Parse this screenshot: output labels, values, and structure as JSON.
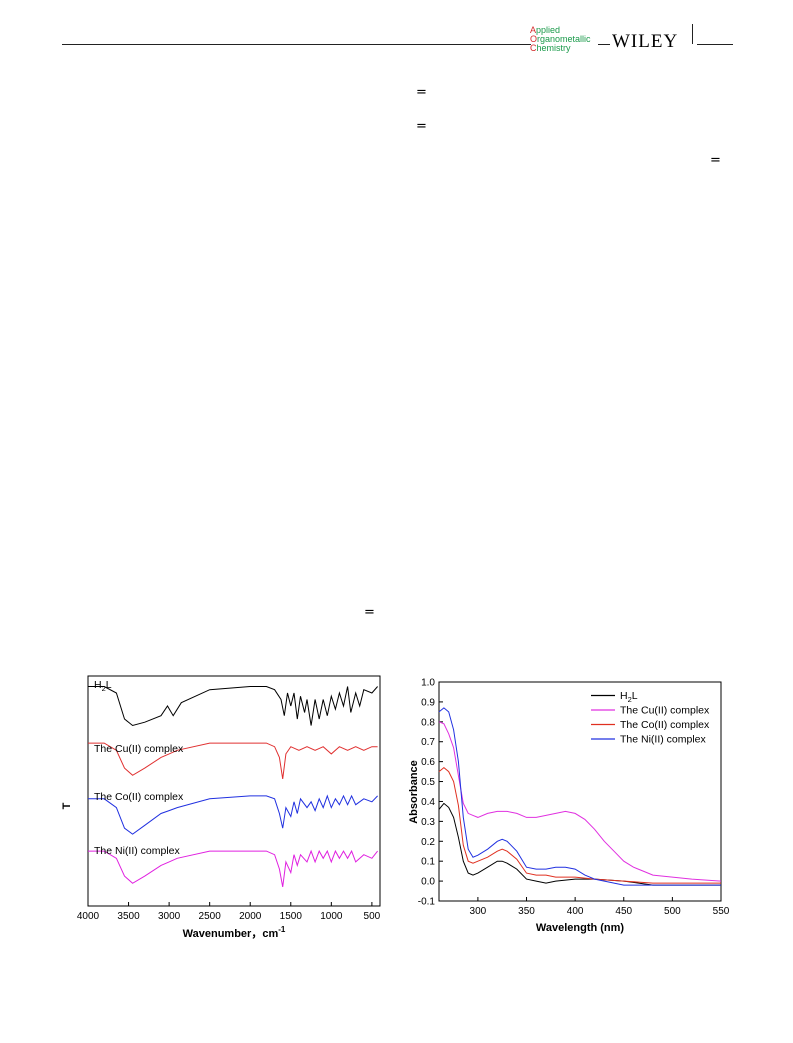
{
  "header": {
    "journal_line1_initial": "A",
    "journal_line1_rest": "pplied",
    "journal_line2_initial": "O",
    "journal_line2_rest": "rganometallic",
    "journal_line3_initial": "C",
    "journal_line3_rest": "hemistry",
    "publisher": "WILEY"
  },
  "equals_symbol": "=",
  "chart_data": [
    {
      "type": "line",
      "title": "",
      "xlabel": "Wavenumber，cm",
      "xlabel_superscript": "-1",
      "ylabel": "T",
      "xlim": [
        4000,
        400
      ],
      "x_ticks": [
        "4000",
        "3500",
        "3000",
        "2500",
        "2000",
        "1500",
        "1000",
        "500"
      ],
      "series": [
        {
          "name": "H2L",
          "label_main": "H",
          "label_sub": "2",
          "label_tail": "L",
          "color": "#000000",
          "points": [
            [
              4000,
              0.82
            ],
            [
              3800,
              0.82
            ],
            [
              3650,
              0.8
            ],
            [
              3550,
              0.72
            ],
            [
              3450,
              0.7
            ],
            [
              3300,
              0.71
            ],
            [
              3100,
              0.73
            ],
            [
              3020,
              0.76
            ],
            [
              2950,
              0.73
            ],
            [
              2850,
              0.77
            ],
            [
              2500,
              0.81
            ],
            [
              2000,
              0.82
            ],
            [
              1800,
              0.82
            ],
            [
              1700,
              0.81
            ],
            [
              1620,
              0.78
            ],
            [
              1580,
              0.73
            ],
            [
              1540,
              0.8
            ],
            [
              1500,
              0.76
            ],
            [
              1460,
              0.8
            ],
            [
              1420,
              0.72
            ],
            [
              1380,
              0.79
            ],
            [
              1330,
              0.74
            ],
            [
              1300,
              0.78
            ],
            [
              1250,
              0.7
            ],
            [
              1200,
              0.78
            ],
            [
              1150,
              0.72
            ],
            [
              1100,
              0.78
            ],
            [
              1050,
              0.73
            ],
            [
              1000,
              0.79
            ],
            [
              950,
              0.75
            ],
            [
              900,
              0.8
            ],
            [
              850,
              0.76
            ],
            [
              800,
              0.82
            ],
            [
              760,
              0.74
            ],
            [
              700,
              0.8
            ],
            [
              650,
              0.76
            ],
            [
              600,
              0.81
            ],
            [
              500,
              0.8
            ],
            [
              430,
              0.82
            ]
          ]
        },
        {
          "name": "The Cu(II) complex",
          "color": "#e03030",
          "points": [
            [
              4000,
              0.59
            ],
            [
              3800,
              0.59
            ],
            [
              3650,
              0.57
            ],
            [
              3550,
              0.52
            ],
            [
              3450,
              0.5
            ],
            [
              3300,
              0.52
            ],
            [
              3100,
              0.55
            ],
            [
              3000,
              0.56
            ],
            [
              2900,
              0.57
            ],
            [
              2500,
              0.59
            ],
            [
              2000,
              0.59
            ],
            [
              1800,
              0.59
            ],
            [
              1700,
              0.58
            ],
            [
              1640,
              0.55
            ],
            [
              1600,
              0.49
            ],
            [
              1560,
              0.56
            ],
            [
              1500,
              0.58
            ],
            [
              1400,
              0.57
            ],
            [
              1300,
              0.58
            ],
            [
              1200,
              0.57
            ],
            [
              1100,
              0.58
            ],
            [
              1000,
              0.56
            ],
            [
              900,
              0.58
            ],
            [
              800,
              0.57
            ],
            [
              700,
              0.58
            ],
            [
              600,
              0.57
            ],
            [
              500,
              0.58
            ],
            [
              430,
              0.58
            ]
          ]
        },
        {
          "name": "The Co(II) complex",
          "color": "#2030e0",
          "points": [
            [
              4000,
              0.41
            ],
            [
              3800,
              0.41
            ],
            [
              3650,
              0.38
            ],
            [
              3550,
              0.31
            ],
            [
              3450,
              0.29
            ],
            [
              3300,
              0.32
            ],
            [
              3100,
              0.36
            ],
            [
              3000,
              0.37
            ],
            [
              2900,
              0.38
            ],
            [
              2500,
              0.41
            ],
            [
              2000,
              0.42
            ],
            [
              1800,
              0.42
            ],
            [
              1700,
              0.41
            ],
            [
              1640,
              0.36
            ],
            [
              1600,
              0.31
            ],
            [
              1560,
              0.38
            ],
            [
              1500,
              0.35
            ],
            [
              1460,
              0.4
            ],
            [
              1420,
              0.36
            ],
            [
              1380,
              0.41
            ],
            [
              1300,
              0.38
            ],
            [
              1250,
              0.4
            ],
            [
              1200,
              0.37
            ],
            [
              1150,
              0.41
            ],
            [
              1100,
              0.38
            ],
            [
              1050,
              0.42
            ],
            [
              1000,
              0.38
            ],
            [
              950,
              0.41
            ],
            [
              900,
              0.39
            ],
            [
              850,
              0.42
            ],
            [
              800,
              0.39
            ],
            [
              750,
              0.42
            ],
            [
              700,
              0.39
            ],
            [
              600,
              0.41
            ],
            [
              500,
              0.4
            ],
            [
              430,
              0.42
            ]
          ]
        },
        {
          "name": "The Ni(II) complex",
          "color": "#e020e0",
          "points": [
            [
              4000,
              0.19
            ],
            [
              3800,
              0.19
            ],
            [
              3650,
              0.17
            ],
            [
              3550,
              0.12
            ],
            [
              3450,
              0.1
            ],
            [
              3300,
              0.12
            ],
            [
              3100,
              0.15
            ],
            [
              3000,
              0.16
            ],
            [
              2900,
              0.17
            ],
            [
              2500,
              0.19
            ],
            [
              2000,
              0.19
            ],
            [
              1800,
              0.19
            ],
            [
              1700,
              0.18
            ],
            [
              1640,
              0.14
            ],
            [
              1600,
              0.09
            ],
            [
              1560,
              0.16
            ],
            [
              1500,
              0.13
            ],
            [
              1460,
              0.18
            ],
            [
              1420,
              0.15
            ],
            [
              1380,
              0.18
            ],
            [
              1300,
              0.16
            ],
            [
              1250,
              0.19
            ],
            [
              1200,
              0.16
            ],
            [
              1150,
              0.19
            ],
            [
              1100,
              0.17
            ],
            [
              1050,
              0.19
            ],
            [
              1000,
              0.16
            ],
            [
              950,
              0.19
            ],
            [
              900,
              0.17
            ],
            [
              850,
              0.19
            ],
            [
              800,
              0.17
            ],
            [
              750,
              0.19
            ],
            [
              700,
              0.16
            ],
            [
              600,
              0.18
            ],
            [
              500,
              0.17
            ],
            [
              430,
              0.19
            ]
          ]
        }
      ]
    },
    {
      "type": "line",
      "title": "",
      "xlabel": "Wavelength (nm)",
      "ylabel": "Absorbance",
      "xlim": [
        260,
        550
      ],
      "ylim": [
        -0.1,
        1.0
      ],
      "x_ticks": [
        "300",
        "350",
        "400",
        "450",
        "500",
        "550"
      ],
      "y_ticks": [
        "-0.1",
        "0.0",
        "0.1",
        "0.2",
        "0.3",
        "0.4",
        "0.5",
        "0.6",
        "0.7",
        "0.8",
        "0.9",
        "1.0"
      ],
      "legend_position": "top-right",
      "series": [
        {
          "name": "H2L",
          "label_main": "H",
          "label_sub": "2",
          "label_tail": "L",
          "color": "#000000",
          "points": [
            [
              260,
              0.36
            ],
            [
              265,
              0.39
            ],
            [
              270,
              0.37
            ],
            [
              275,
              0.32
            ],
            [
              280,
              0.22
            ],
            [
              285,
              0.1
            ],
            [
              290,
              0.04
            ],
            [
              295,
              0.03
            ],
            [
              300,
              0.04
            ],
            [
              310,
              0.07
            ],
            [
              320,
              0.1
            ],
            [
              325,
              0.1
            ],
            [
              330,
              0.09
            ],
            [
              340,
              0.06
            ],
            [
              350,
              0.01
            ],
            [
              360,
              0.0
            ],
            [
              370,
              -0.01
            ],
            [
              380,
              0.0
            ],
            [
              400,
              0.01
            ],
            [
              420,
              0.01
            ],
            [
              450,
              0.0
            ],
            [
              480,
              -0.02
            ],
            [
              500,
              -0.02
            ],
            [
              530,
              -0.02
            ],
            [
              550,
              -0.02
            ]
          ]
        },
        {
          "name": "The Cu(II) complex",
          "color": "#e030e0",
          "points": [
            [
              260,
              0.8
            ],
            [
              265,
              0.79
            ],
            [
              270,
              0.74
            ],
            [
              275,
              0.67
            ],
            [
              280,
              0.53
            ],
            [
              285,
              0.39
            ],
            [
              290,
              0.34
            ],
            [
              295,
              0.33
            ],
            [
              300,
              0.32
            ],
            [
              310,
              0.34
            ],
            [
              320,
              0.35
            ],
            [
              330,
              0.35
            ],
            [
              340,
              0.34
            ],
            [
              350,
              0.32
            ],
            [
              360,
              0.32
            ],
            [
              370,
              0.33
            ],
            [
              380,
              0.34
            ],
            [
              390,
              0.35
            ],
            [
              400,
              0.34
            ],
            [
              410,
              0.31
            ],
            [
              420,
              0.26
            ],
            [
              430,
              0.2
            ],
            [
              440,
              0.15
            ],
            [
              450,
              0.1
            ],
            [
              460,
              0.07
            ],
            [
              470,
              0.05
            ],
            [
              480,
              0.03
            ],
            [
              500,
              0.02
            ],
            [
              520,
              0.01
            ],
            [
              550,
              0.0
            ]
          ]
        },
        {
          "name": "The Co(II) complex",
          "color": "#e03020",
          "points": [
            [
              260,
              0.55
            ],
            [
              265,
              0.57
            ],
            [
              270,
              0.55
            ],
            [
              275,
              0.5
            ],
            [
              280,
              0.38
            ],
            [
              285,
              0.18
            ],
            [
              290,
              0.1
            ],
            [
              295,
              0.09
            ],
            [
              300,
              0.1
            ],
            [
              310,
              0.12
            ],
            [
              320,
              0.15
            ],
            [
              325,
              0.16
            ],
            [
              330,
              0.15
            ],
            [
              340,
              0.11
            ],
            [
              350,
              0.04
            ],
            [
              360,
              0.03
            ],
            [
              370,
              0.03
            ],
            [
              380,
              0.02
            ],
            [
              400,
              0.02
            ],
            [
              420,
              0.01
            ],
            [
              450,
              0.0
            ],
            [
              480,
              -0.01
            ],
            [
              500,
              -0.01
            ],
            [
              530,
              -0.01
            ],
            [
              550,
              -0.01
            ]
          ]
        },
        {
          "name": "The Ni(II) complex",
          "color": "#2030e0",
          "points": [
            [
              260,
              0.85
            ],
            [
              265,
              0.87
            ],
            [
              270,
              0.85
            ],
            [
              275,
              0.76
            ],
            [
              280,
              0.6
            ],
            [
              285,
              0.32
            ],
            [
              290,
              0.16
            ],
            [
              295,
              0.12
            ],
            [
              300,
              0.13
            ],
            [
              310,
              0.16
            ],
            [
              320,
              0.2
            ],
            [
              325,
              0.21
            ],
            [
              330,
              0.2
            ],
            [
              340,
              0.15
            ],
            [
              350,
              0.07
            ],
            [
              360,
              0.06
            ],
            [
              370,
              0.06
            ],
            [
              380,
              0.07
            ],
            [
              390,
              0.07
            ],
            [
              400,
              0.06
            ],
            [
              410,
              0.03
            ],
            [
              420,
              0.01
            ],
            [
              430,
              0.0
            ],
            [
              450,
              -0.02
            ],
            [
              480,
              -0.02
            ],
            [
              500,
              -0.02
            ],
            [
              530,
              -0.02
            ],
            [
              550,
              -0.02
            ]
          ]
        }
      ]
    }
  ]
}
